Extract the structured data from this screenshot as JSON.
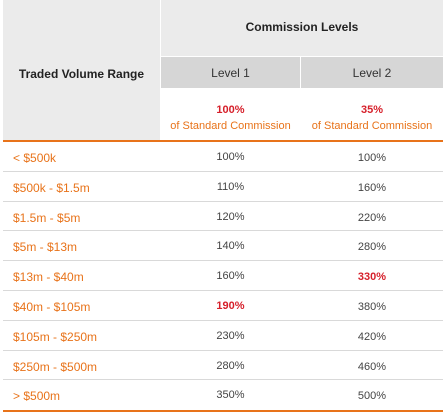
{
  "table": {
    "header_range": "Traded Volume Range",
    "header_title": "Commission Levels",
    "level1": {
      "label": "Level 1",
      "pct": "100%",
      "std": "of Standard Commission"
    },
    "level2": {
      "label": "Level 2",
      "pct": "35%",
      "std": "of Standard Commission"
    },
    "accent_color": "#e8731a",
    "highlight_color": "#d61f2a",
    "rows": [
      {
        "range": "< $500k",
        "l1": "100%",
        "l2": "100%"
      },
      {
        "range": "$500k  - $1.5m",
        "l1": "110%",
        "l2": "160%"
      },
      {
        "range": "$1.5m - $5m",
        "l1": "120%",
        "l2": "220%"
      },
      {
        "range": "$5m  - $13m",
        "l1": "140%",
        "l2": "280%"
      },
      {
        "range": "$13m  - $40m",
        "l1": "160%",
        "l2": "330%"
      },
      {
        "range": "$40m  - $105m",
        "l1": "190%",
        "l2": "380%"
      },
      {
        "range": "$105m - $250m",
        "l1": "230%",
        "l2": "420%"
      },
      {
        "range": "$250m - $500m",
        "l1": "280%",
        "l2": "460%"
      },
      {
        "range": "> $500m",
        "l1": "350%",
        "l2": "500%"
      }
    ]
  }
}
